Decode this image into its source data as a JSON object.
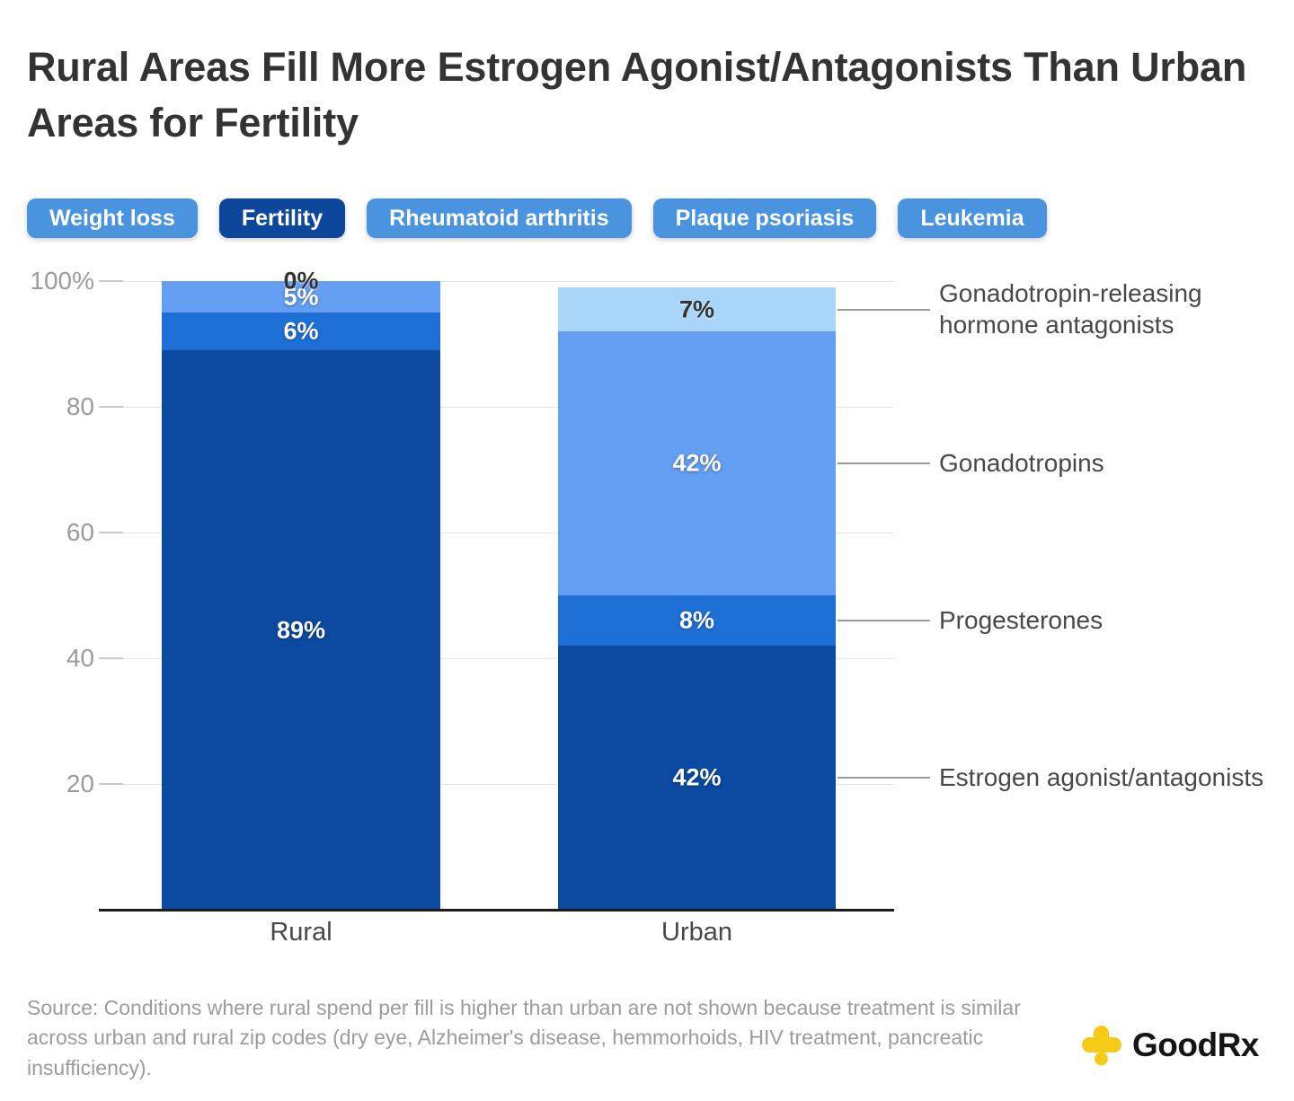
{
  "title": "Rural Areas Fill More Estrogen Agonist/Antagonists Than Urban Areas for Fertility",
  "tabs": [
    {
      "label": "Weight loss",
      "active": false
    },
    {
      "label": "Fertility",
      "active": true
    },
    {
      "label": "Rheumatoid arthritis",
      "active": false
    },
    {
      "label": "Plaque psoriasis",
      "active": false
    },
    {
      "label": "Leukemia",
      "active": false
    }
  ],
  "colors": {
    "tab": "#4a93de",
    "tab_active": "#0d479c",
    "estrogen": "#0b4aa0",
    "progesterones": "#1e70d6",
    "gonadotropins": "#649ef3",
    "gnrh": "#a9d6f8",
    "grid": "#e5e5e5",
    "axis": "#1b1b1b",
    "label_dark": "#333333",
    "label_light": "#ffffff",
    "logo_yellow": "#f6ca16"
  },
  "chart_data": {
    "type": "bar",
    "subtype": "stacked-percent",
    "title": "Rural Areas Fill More Estrogen Agonist/Antagonists Than Urban Areas for Fertility",
    "categories": [
      "Rural",
      "Urban"
    ],
    "series_bottom_up": [
      {
        "name": "Estrogen agonist/antagonists",
        "color_key": "estrogen",
        "values": [
          89,
          42
        ],
        "label_style": "light"
      },
      {
        "name": "Progesterones",
        "color_key": "progesterones",
        "values": [
          6,
          8
        ],
        "label_style": "light"
      },
      {
        "name": "Gonadotropins",
        "color_key": "gonadotropins",
        "values": [
          5,
          42
        ],
        "label_style": "light"
      },
      {
        "name": "Gonadotropin-releasing hormone antagonists",
        "color_key": "gnrh",
        "values": [
          0,
          7
        ],
        "label_style": "dark"
      }
    ],
    "y_ticks": [
      {
        "value": 100,
        "label": "100%"
      },
      {
        "value": 80,
        "label": "80"
      },
      {
        "value": 60,
        "label": "60"
      },
      {
        "value": 40,
        "label": "40"
      },
      {
        "value": 20,
        "label": "20"
      }
    ],
    "ylim": [
      0,
      100
    ],
    "value_suffix": "%",
    "grid": true,
    "legend_position": "right-callouts"
  },
  "right_labels": [
    "Gonadotropin-releasing hormone antagonists",
    "Gonadotropins",
    "Progesterones",
    "Estrogen agonist/antagonists"
  ],
  "source_text": "Source: Conditions where rural spend per fill is higher than urban are not shown because treatment is similar across urban and rural zip codes (dry eye, Alzheimer's disease, hemmorhoids, HIV treatment, pancreatic insufficiency).",
  "logo_text": "GoodRx"
}
